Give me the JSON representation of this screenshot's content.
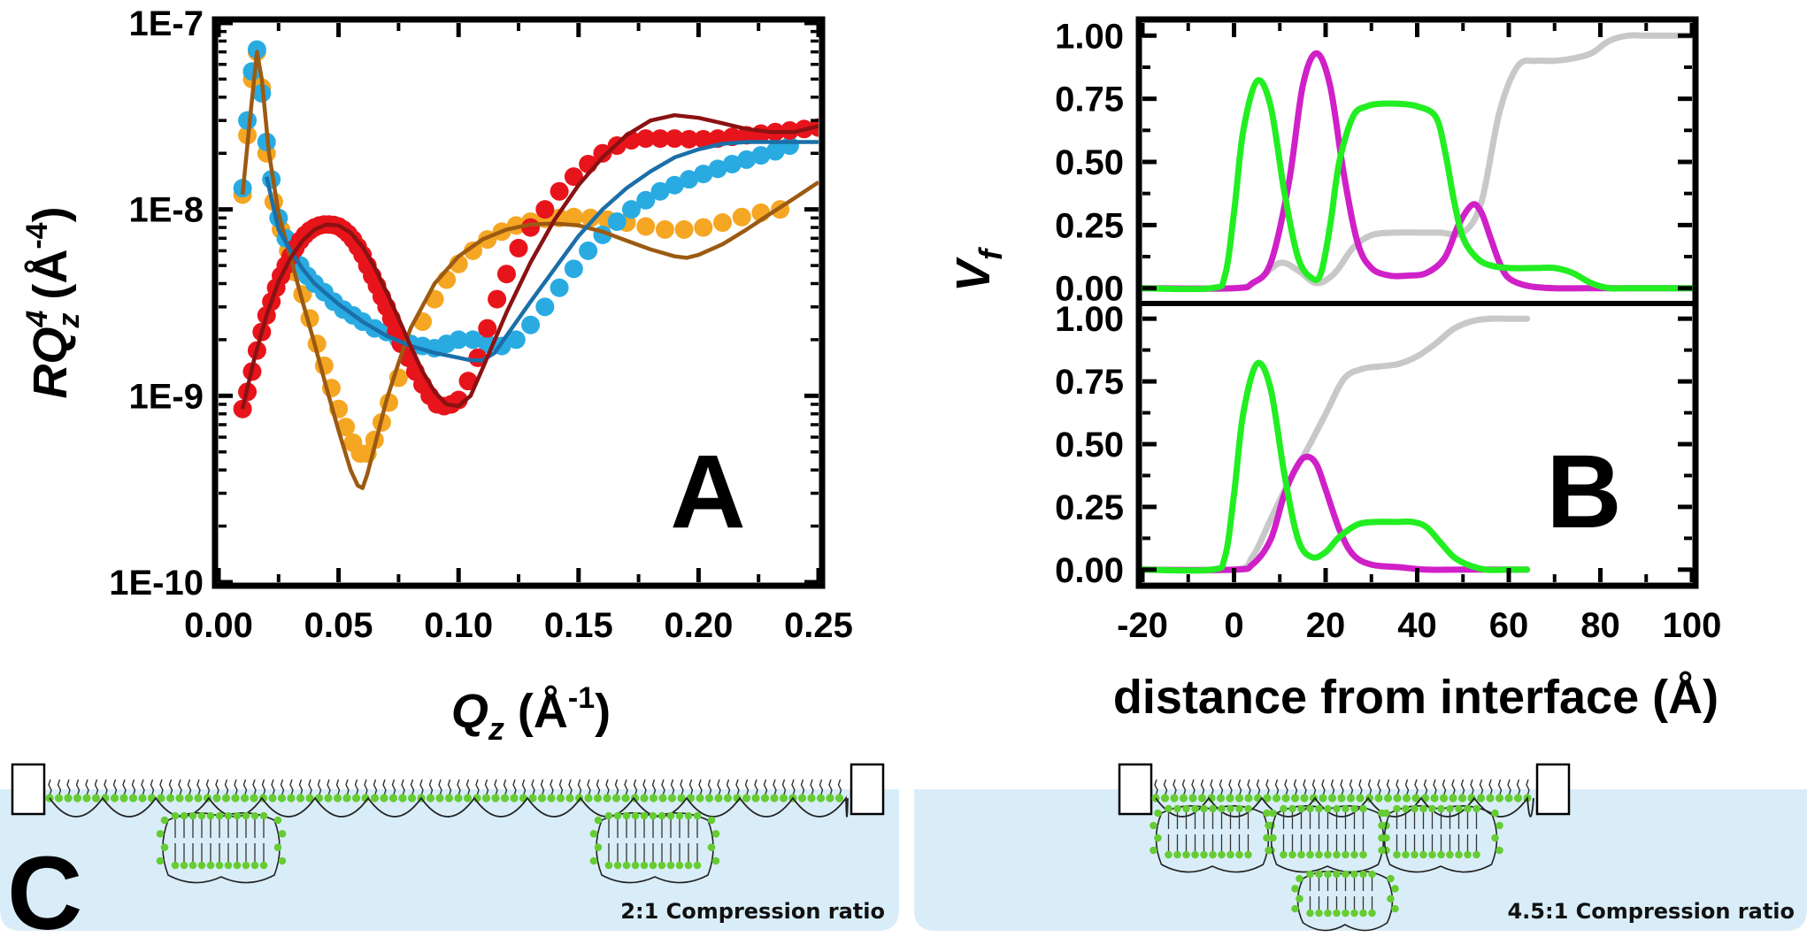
{
  "chart_data": [
    {
      "panel": "A",
      "type": "scatter",
      "title": "",
      "xlabel": "Q_z (Å^-1)",
      "ylabel": "RQ_z^4 (Å^-4)",
      "xlabel_parts": {
        "var": "Q",
        "sub": "z",
        "unit_pre": " (Å",
        "sup": "-1",
        "unit_post": ")"
      },
      "ylabel_parts": {
        "var": "RQ",
        "sup": "4",
        "sub": "z",
        "unit_pre": " (Å",
        "unit_sup": "-4",
        "unit_post": ")"
      },
      "xlim": [
        0.0,
        0.25
      ],
      "ylim": [
        1e-10,
        1e-07
      ],
      "yscale": "log",
      "x_ticks": [
        "0.00",
        "0.05",
        "0.10",
        "0.15",
        "0.20",
        "0.25"
      ],
      "x_tick_values": [
        0.0,
        0.05,
        0.1,
        0.15,
        0.2,
        0.25
      ],
      "y_ticks": [
        "1E-10",
        "1E-9",
        "1E-8",
        "1E-7"
      ],
      "y_tick_values": [
        1e-10,
        1e-09,
        1e-08,
        1e-07
      ],
      "grid": false,
      "colors": {
        "orange_data": "#f5a623",
        "orange_fit": "#9c5a12",
        "blue_data": "#29abe2",
        "blue_fit": "#1b6fa8",
        "red_data": "#e8141b",
        "red_fit": "#8b1212"
      },
      "series": [
        {
          "kind": "data",
          "color": "#f5a623",
          "x": [
            0.01,
            0.012,
            0.014,
            0.016,
            0.018,
            0.02,
            0.023,
            0.026,
            0.029,
            0.032,
            0.035,
            0.038,
            0.041,
            0.044,
            0.047,
            0.05,
            0.053,
            0.056,
            0.059,
            0.062,
            0.065,
            0.068,
            0.071,
            0.075,
            0.08,
            0.085,
            0.09,
            0.095,
            0.1,
            0.106,
            0.112,
            0.118,
            0.124,
            0.13,
            0.136,
            0.142,
            0.148,
            0.155,
            0.162,
            0.17,
            0.178,
            0.186,
            0.194,
            0.202,
            0.21,
            0.218,
            0.226,
            0.234
          ],
          "y": [
            1.2e-08,
            2.5e-08,
            5e-08,
            7e-08,
            4.5e-08,
            2e-08,
            1.1e-08,
            7.8e-09,
            6e-09,
            4.6e-09,
            3.5e-09,
            2.6e-09,
            1.9e-09,
            1.45e-09,
            1.1e-09,
            8.5e-10,
            6.8e-10,
            5.6e-10,
            4.9e-10,
            4.9e-10,
            5.8e-10,
            7.2e-10,
            9.2e-10,
            1.25e-09,
            1.8e-09,
            2.5e-09,
            3.3e-09,
            4.2e-09,
            5.1e-09,
            6e-09,
            6.9e-09,
            7.6e-09,
            8.2e-09,
            8.6e-09,
            8.9e-09,
            9e-09,
            9.1e-09,
            9e-09,
            8.8e-09,
            8.5e-09,
            8.1e-09,
            7.8e-09,
            7.8e-09,
            8e-09,
            8.5e-09,
            9.1e-09,
            9.6e-09,
            1e-08
          ]
        },
        {
          "kind": "fit",
          "color": "#9c5a12",
          "x": [
            0.01,
            0.013,
            0.016,
            0.018,
            0.021,
            0.025,
            0.03,
            0.035,
            0.04,
            0.045,
            0.05,
            0.055,
            0.058,
            0.06,
            0.062,
            0.066,
            0.07,
            0.075,
            0.08,
            0.09,
            0.1,
            0.11,
            0.12,
            0.13,
            0.14,
            0.15,
            0.16,
            0.17,
            0.18,
            0.19,
            0.195,
            0.2,
            0.21,
            0.22,
            0.23,
            0.24,
            0.25
          ],
          "y": [
            1.2e-08,
            3e-08,
            7e-08,
            5e-08,
            2e-08,
            9.5e-09,
            5.5e-09,
            3.2e-09,
            1.9e-09,
            1.1e-09,
            6.5e-10,
            4e-10,
            3.3e-10,
            3.2e-10,
            3.8e-10,
            6e-10,
            9.5e-10,
            1.5e-09,
            2.3e-09,
            4e-09,
            5.6e-09,
            6.9e-09,
            7.8e-09,
            8.3e-09,
            8.4e-09,
            8.2e-09,
            7.6e-09,
            6.8e-09,
            6.1e-09,
            5.6e-09,
            5.5e-09,
            5.7e-09,
            6.5e-09,
            7.8e-09,
            9.5e-09,
            1.15e-08,
            1.4e-08
          ]
        },
        {
          "kind": "data",
          "color": "#29abe2",
          "x": [
            0.01,
            0.012,
            0.014,
            0.016,
            0.018,
            0.02,
            0.022,
            0.025,
            0.028,
            0.031,
            0.034,
            0.037,
            0.04,
            0.044,
            0.048,
            0.052,
            0.056,
            0.06,
            0.065,
            0.07,
            0.075,
            0.08,
            0.085,
            0.09,
            0.095,
            0.1,
            0.106,
            0.112,
            0.118,
            0.124,
            0.13,
            0.136,
            0.142,
            0.148,
            0.154,
            0.16,
            0.166,
            0.172,
            0.178,
            0.184,
            0.19,
            0.196,
            0.202,
            0.208,
            0.214,
            0.22,
            0.226,
            0.232,
            0.238
          ],
          "y": [
            1.3e-08,
            3e-08,
            5.5e-08,
            7.2e-08,
            4.2e-08,
            2.3e-08,
            1.45e-08,
            9e-09,
            7e-09,
            5.8e-09,
            5e-09,
            4.4e-09,
            4e-09,
            3.6e-09,
            3.2e-09,
            2.9e-09,
            2.7e-09,
            2.5e-09,
            2.3e-09,
            2.2e-09,
            2e-09,
            1.9e-09,
            1.85e-09,
            1.8e-09,
            1.9e-09,
            2e-09,
            2e-09,
            1.9e-09,
            1.85e-09,
            2e-09,
            2.4e-09,
            3e-09,
            3.8e-09,
            4.8e-09,
            6e-09,
            7.3e-09,
            8.6e-09,
            1e-08,
            1.12e-08,
            1.25e-08,
            1.35e-08,
            1.45e-08,
            1.55e-08,
            1.65e-08,
            1.75e-08,
            1.85e-08,
            1.95e-08,
            2.05e-08,
            2.2e-08
          ]
        },
        {
          "kind": "fit",
          "color": "#1b6fa8",
          "x": [
            0.02,
            0.025,
            0.03,
            0.035,
            0.04,
            0.05,
            0.06,
            0.07,
            0.08,
            0.09,
            0.1,
            0.105,
            0.11,
            0.115,
            0.12,
            0.13,
            0.14,
            0.15,
            0.16,
            0.17,
            0.18,
            0.19,
            0.2,
            0.21,
            0.22,
            0.23,
            0.24,
            0.25
          ],
          "y": [
            1.5e-08,
            7.8e-09,
            6e-09,
            4.8e-09,
            4e-09,
            3.1e-09,
            2.5e-09,
            2.1e-09,
            1.85e-09,
            1.7e-09,
            1.6e-09,
            1.55e-09,
            1.55e-09,
            1.7e-09,
            2.1e-09,
            3.2e-09,
            4.8e-09,
            7.2e-09,
            1e-08,
            1.3e-08,
            1.6e-08,
            1.9e-08,
            2.1e-08,
            2.25e-08,
            2.3e-08,
            2.3e-08,
            2.3e-08,
            2.3e-08
          ]
        },
        {
          "kind": "data",
          "color": "#e8141b",
          "x": [
            0.01,
            0.012,
            0.014,
            0.016,
            0.018,
            0.02,
            0.022,
            0.024,
            0.026,
            0.028,
            0.03,
            0.032,
            0.034,
            0.036,
            0.038,
            0.04,
            0.042,
            0.044,
            0.046,
            0.048,
            0.05,
            0.052,
            0.054,
            0.056,
            0.058,
            0.06,
            0.062,
            0.064,
            0.066,
            0.068,
            0.07,
            0.072,
            0.074,
            0.076,
            0.079,
            0.082,
            0.085,
            0.088,
            0.091,
            0.094,
            0.097,
            0.1,
            0.104,
            0.108,
            0.112,
            0.116,
            0.12,
            0.125,
            0.13,
            0.136,
            0.142,
            0.148,
            0.154,
            0.16,
            0.166,
            0.172,
            0.178,
            0.184,
            0.19,
            0.196,
            0.202,
            0.208,
            0.214,
            0.22,
            0.226,
            0.232,
            0.238,
            0.244,
            0.25
          ],
          "y": [
            8.5e-10,
            1.05e-09,
            1.35e-09,
            1.75e-09,
            2.2e-09,
            2.7e-09,
            3.2e-09,
            3.8e-09,
            4.4e-09,
            5e-09,
            5.6e-09,
            6.2e-09,
            6.8e-09,
            7.3e-09,
            7.7e-09,
            8e-09,
            8.2e-09,
            8.3e-09,
            8.3e-09,
            8.25e-09,
            8.1e-09,
            7.8e-09,
            7.4e-09,
            6.9e-09,
            6.3e-09,
            5.7e-09,
            5e-09,
            4.4e-09,
            3.9e-09,
            3.4e-09,
            3e-09,
            2.6e-09,
            2.2e-09,
            1.9e-09,
            1.6e-09,
            1.35e-09,
            1.15e-09,
            1e-09,
            9e-10,
            8.8e-10,
            9e-10,
            9.5e-10,
            1.2e-09,
            1.6e-09,
            2.3e-09,
            3.3e-09,
            4.5e-09,
            6.2e-09,
            8e-09,
            1e-08,
            1.25e-08,
            1.5e-08,
            1.75e-08,
            2e-08,
            2.2e-08,
            2.35e-08,
            2.4e-08,
            2.4e-08,
            2.4e-08,
            2.38e-08,
            2.38e-08,
            2.4e-08,
            2.45e-08,
            2.5e-08,
            2.55e-08,
            2.6e-08,
            2.65e-08,
            2.7e-08,
            2.75e-08
          ]
        },
        {
          "kind": "fit",
          "color": "#8b1212",
          "x": [
            0.01,
            0.015,
            0.02,
            0.025,
            0.03,
            0.035,
            0.04,
            0.045,
            0.05,
            0.055,
            0.06,
            0.065,
            0.07,
            0.075,
            0.08,
            0.085,
            0.09,
            0.095,
            0.1,
            0.105,
            0.11,
            0.12,
            0.13,
            0.14,
            0.15,
            0.16,
            0.17,
            0.18,
            0.19,
            0.2,
            0.21,
            0.22,
            0.23,
            0.24,
            0.25
          ],
          "y": [
            8.5e-10,
            1.6e-09,
            2.7e-09,
            4.1e-09,
            5.5e-09,
            6.8e-09,
            7.8e-09,
            8.3e-09,
            8.2e-09,
            7.5e-09,
            6.3e-09,
            4.9e-09,
            3.6e-09,
            2.6e-09,
            1.85e-09,
            1.35e-09,
            1.05e-09,
            9e-10,
            8.8e-10,
            1e-09,
            1.4e-09,
            2.8e-09,
            5.2e-09,
            8.8e-09,
            1.35e-08,
            1.9e-08,
            2.5e-08,
            3e-08,
            3.2e-08,
            3.1e-08,
            2.9e-08,
            2.7e-08,
            2.6e-08,
            2.6e-08,
            2.8e-08
          ]
        }
      ]
    },
    {
      "panel": "B-top",
      "type": "line",
      "title": "",
      "xlim": [
        -20,
        100
      ],
      "ylim": [
        -0.05,
        1.05
      ],
      "y_ticks": [
        "0.00",
        "0.25",
        "0.50",
        "0.75",
        "1.00"
      ],
      "y_tick_values": [
        0.0,
        0.25,
        0.5,
        0.75,
        1.0
      ],
      "grid": false,
      "series": [
        {
          "color": "#c8c8c8",
          "x": [
            -20,
            0,
            5,
            10,
            14,
            18,
            22,
            26,
            30,
            35,
            40,
            45,
            50,
            54,
            58,
            62,
            66,
            70,
            74,
            78,
            82,
            86,
            90,
            95,
            100
          ],
          "y": [
            0.0,
            0.0,
            0.03,
            0.1,
            0.07,
            0.02,
            0.06,
            0.16,
            0.21,
            0.22,
            0.22,
            0.22,
            0.22,
            0.34,
            0.7,
            0.88,
            0.9,
            0.9,
            0.91,
            0.93,
            0.98,
            1.0,
            1.0,
            1.0,
            1.0
          ]
        },
        {
          "color": "#d020c8",
          "x": [
            -20,
            0,
            4,
            8,
            12,
            15,
            18,
            21,
            24,
            27,
            30,
            34,
            38,
            42,
            46,
            49,
            52,
            54,
            56,
            58,
            60,
            64,
            70,
            80,
            90,
            100
          ],
          "y": [
            0.0,
            0.0,
            0.02,
            0.1,
            0.42,
            0.8,
            0.93,
            0.8,
            0.45,
            0.18,
            0.08,
            0.05,
            0.05,
            0.06,
            0.12,
            0.25,
            0.33,
            0.3,
            0.2,
            0.1,
            0.04,
            0.01,
            0.0,
            0.0,
            0.0,
            0.0
          ]
        },
        {
          "color": "#22ee22",
          "x": [
            -20,
            -5,
            -2,
            0,
            2,
            5,
            8,
            11,
            14,
            17,
            19,
            21,
            23,
            26,
            29,
            32,
            36,
            40,
            44,
            46,
            48,
            50,
            53,
            56,
            60,
            66,
            70,
            74,
            78,
            82,
            86,
            100
          ],
          "y": [
            0.0,
            0.0,
            0.05,
            0.3,
            0.62,
            0.82,
            0.72,
            0.38,
            0.12,
            0.04,
            0.06,
            0.25,
            0.5,
            0.68,
            0.72,
            0.73,
            0.73,
            0.72,
            0.68,
            0.55,
            0.35,
            0.2,
            0.12,
            0.09,
            0.08,
            0.08,
            0.08,
            0.06,
            0.02,
            0.0,
            0.0,
            0.0
          ]
        }
      ]
    },
    {
      "panel": "B-bottom",
      "type": "line",
      "title": "",
      "xlabel": "distance from interface (Å)",
      "ylabel": "V_f",
      "ylabel_parts": {
        "var": "V",
        "sub": "f"
      },
      "xlim": [
        -20,
        100
      ],
      "ylim": [
        -0.05,
        1.05
      ],
      "x_ticks": [
        "-20",
        "0",
        "20",
        "40",
        "60",
        "80",
        "100"
      ],
      "x_tick_values": [
        -20,
        0,
        20,
        40,
        60,
        80,
        100
      ],
      "y_ticks": [
        "0.00",
        "0.25",
        "0.50",
        "0.75",
        "1.00"
      ],
      "y_tick_values": [
        0.0,
        0.25,
        0.5,
        0.75,
        1.0
      ],
      "grid": false,
      "series": [
        {
          "color": "#c8c8c8",
          "x": [
            -20,
            0,
            4,
            8,
            12,
            16,
            20,
            24,
            28,
            32,
            36,
            40,
            44,
            48,
            52,
            56,
            60,
            64
          ],
          "y": [
            0.0,
            0.0,
            0.05,
            0.2,
            0.35,
            0.48,
            0.62,
            0.76,
            0.8,
            0.81,
            0.82,
            0.85,
            0.9,
            0.96,
            0.99,
            1.0,
            1.0,
            1.0
          ]
        },
        {
          "color": "#d020c8",
          "x": [
            -20,
            0,
            4,
            8,
            11,
            14,
            16,
            18,
            20,
            23,
            26,
            30,
            36,
            42,
            50,
            64
          ],
          "y": [
            0.0,
            0.0,
            0.02,
            0.12,
            0.3,
            0.42,
            0.45,
            0.42,
            0.32,
            0.16,
            0.06,
            0.02,
            0.01,
            0.0,
            0.0,
            0.0
          ]
        },
        {
          "color": "#22ee22",
          "x": [
            -20,
            -5,
            -2,
            0,
            2,
            5,
            8,
            11,
            14,
            17,
            20,
            23,
            27,
            31,
            35,
            39,
            42,
            45,
            48,
            51,
            55,
            60,
            64
          ],
          "y": [
            0.0,
            0.0,
            0.05,
            0.3,
            0.62,
            0.82,
            0.72,
            0.38,
            0.12,
            0.05,
            0.07,
            0.13,
            0.18,
            0.19,
            0.19,
            0.19,
            0.17,
            0.11,
            0.05,
            0.02,
            0.0,
            0.0,
            0.0
          ]
        }
      ]
    }
  ],
  "panel_labels": {
    "a": "A",
    "b": "B",
    "c": "C"
  },
  "panel_c": {
    "left_caption": "2:1 Compression ratio",
    "right_caption": "4.5:1 Compression ratio",
    "water_color": "#d9edf8",
    "headgroup_color": "#66cc33"
  }
}
